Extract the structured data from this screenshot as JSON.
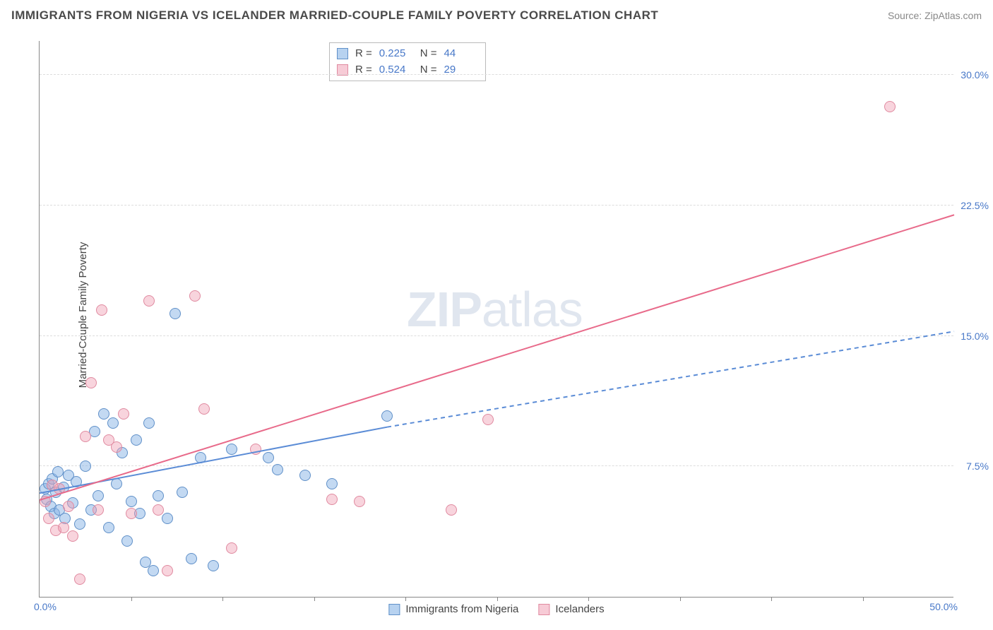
{
  "title": "IMMIGRANTS FROM NIGERIA VS ICELANDER MARRIED-COUPLE FAMILY POVERTY CORRELATION CHART",
  "source": "Source: ZipAtlas.com",
  "ylabel": "Married-Couple Family Poverty",
  "watermark_a": "ZIP",
  "watermark_b": "atlas",
  "chart": {
    "type": "scatter",
    "xmin": 0,
    "xmax": 50,
    "ymin": 0,
    "ymax": 32,
    "x_origin_label": "0.0%",
    "x_max_label": "50.0%",
    "y_ticks": [
      7.5,
      15.0,
      22.5,
      30.0
    ],
    "y_tick_labels": [
      "7.5%",
      "15.0%",
      "22.5%",
      "30.0%"
    ],
    "x_tick_step": 5,
    "background_color": "#ffffff",
    "grid_color": "#dddddd",
    "axis_color": "#888888",
    "series": [
      {
        "key": "blue",
        "label": "Immigrants from Nigeria",
        "fill": "rgba(135,180,230,0.5)",
        "stroke": "#6090c8",
        "R": "0.225",
        "N": "44",
        "trend": {
          "x1": 0,
          "y1": 6.0,
          "x2": 19,
          "y2": 9.8,
          "x3": 50,
          "y3": 15.3,
          "dash_after_x": 19,
          "color": "#5b8cd6",
          "width": 2
        },
        "points": [
          [
            0.3,
            6.2
          ],
          [
            0.4,
            5.6
          ],
          [
            0.5,
            6.5
          ],
          [
            0.6,
            5.2
          ],
          [
            0.7,
            6.8
          ],
          [
            0.8,
            4.8
          ],
          [
            0.9,
            6.0
          ],
          [
            1.0,
            7.2
          ],
          [
            1.1,
            5.0
          ],
          [
            1.3,
            6.3
          ],
          [
            1.4,
            4.5
          ],
          [
            1.6,
            7.0
          ],
          [
            1.8,
            5.4
          ],
          [
            2.0,
            6.6
          ],
          [
            2.2,
            4.2
          ],
          [
            2.5,
            7.5
          ],
          [
            2.8,
            5.0
          ],
          [
            3.0,
            9.5
          ],
          [
            3.2,
            5.8
          ],
          [
            3.5,
            10.5
          ],
          [
            3.8,
            4.0
          ],
          [
            4.0,
            10.0
          ],
          [
            4.2,
            6.5
          ],
          [
            4.5,
            8.3
          ],
          [
            4.8,
            3.2
          ],
          [
            5.0,
            5.5
          ],
          [
            5.3,
            9.0
          ],
          [
            5.5,
            4.8
          ],
          [
            5.8,
            2.0
          ],
          [
            6.0,
            10.0
          ],
          [
            6.2,
            1.5
          ],
          [
            6.5,
            5.8
          ],
          [
            7.0,
            4.5
          ],
          [
            7.4,
            16.3
          ],
          [
            7.8,
            6.0
          ],
          [
            8.3,
            2.2
          ],
          [
            8.8,
            8.0
          ],
          [
            9.5,
            1.8
          ],
          [
            10.5,
            8.5
          ],
          [
            12.5,
            8.0
          ],
          [
            13.0,
            7.3
          ],
          [
            14.5,
            7.0
          ],
          [
            16.0,
            6.5
          ],
          [
            19.0,
            10.4
          ]
        ]
      },
      {
        "key": "pink",
        "label": "Icelanders",
        "fill": "rgba(240,160,180,0.45)",
        "stroke": "#e08aa0",
        "R": "0.524",
        "N": "29",
        "trend": {
          "x1": 0,
          "y1": 5.6,
          "x2": 50,
          "y2": 22.0,
          "color": "#e86a8a",
          "width": 2
        },
        "points": [
          [
            0.3,
            5.5
          ],
          [
            0.5,
            4.5
          ],
          [
            0.7,
            6.4
          ],
          [
            0.9,
            3.8
          ],
          [
            1.1,
            6.2
          ],
          [
            1.3,
            4.0
          ],
          [
            1.6,
            5.2
          ],
          [
            1.8,
            3.5
          ],
          [
            2.2,
            1.0
          ],
          [
            2.5,
            9.2
          ],
          [
            2.8,
            12.3
          ],
          [
            3.2,
            5.0
          ],
          [
            3.4,
            16.5
          ],
          [
            3.8,
            9.0
          ],
          [
            4.2,
            8.6
          ],
          [
            4.6,
            10.5
          ],
          [
            5.0,
            4.8
          ],
          [
            6.0,
            17.0
          ],
          [
            6.5,
            5.0
          ],
          [
            7.0,
            1.5
          ],
          [
            8.5,
            17.3
          ],
          [
            9.0,
            10.8
          ],
          [
            10.5,
            2.8
          ],
          [
            11.8,
            8.5
          ],
          [
            16.0,
            5.6
          ],
          [
            17.5,
            5.5
          ],
          [
            22.5,
            5.0
          ],
          [
            24.5,
            10.2
          ],
          [
            46.5,
            28.2
          ]
        ]
      }
    ]
  },
  "legend": {
    "r_label": "R =",
    "n_label": "N ="
  }
}
